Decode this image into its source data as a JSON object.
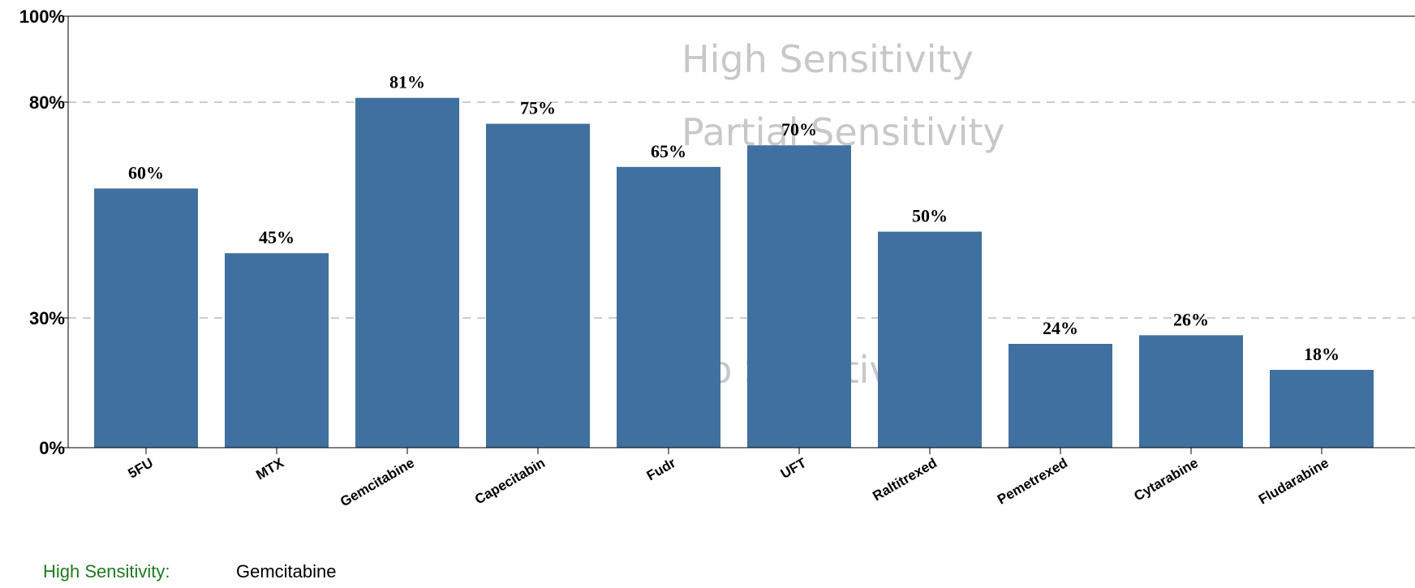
{
  "chart_data": {
    "type": "bar",
    "categories": [
      "5FU",
      "MTX",
      "Gemcitabine",
      "Capecitabin",
      "Fudr",
      "UFT",
      "Raltitrexed",
      "Pemetrexed",
      "Cytarabine",
      "Fludarabine"
    ],
    "values": [
      60,
      45,
      81,
      75,
      65,
      70,
      50,
      24,
      26,
      18
    ],
    "value_labels": [
      "60%",
      "45%",
      "81%",
      "75%",
      "65%",
      "70%",
      "50%",
      "24%",
      "26%",
      "18%"
    ],
    "ylim": [
      0,
      100
    ],
    "y_ticks": [
      0,
      30,
      80,
      100
    ],
    "y_tick_labels": [
      "0%",
      "30%",
      "80%",
      "100%"
    ],
    "threshold_lines": [
      30,
      80
    ],
    "zones": [
      {
        "label": "High Sensitivity",
        "value": 90
      },
      {
        "label": "Partial Sensitivity",
        "value": 73
      },
      {
        "label": "No Sensitivity",
        "value": 18
      }
    ],
    "bar_color": "#3f709f",
    "grid": false,
    "y_scale": "nonlinear"
  },
  "footer": {
    "key": "High Sensitivity:",
    "value": "Gemcitabine",
    "key_color": "#1f7a1f"
  }
}
